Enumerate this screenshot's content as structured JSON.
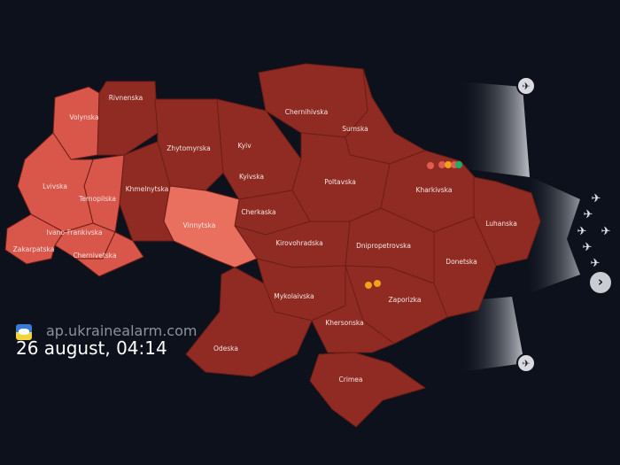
{
  "colors": {
    "background": "#0c111b",
    "alert_region": "#8f2b22",
    "light_region": "#d9564a",
    "lighter_region": "#e9705f",
    "border": "#6e1d16"
  },
  "regions": [
    {
      "id": "volynska",
      "name": "Volynska",
      "status": "light"
    },
    {
      "id": "rivnenska",
      "name": "Rivnenska",
      "status": "alert"
    },
    {
      "id": "zhytomyrska",
      "name": "Zhytomyrska",
      "status": "alert"
    },
    {
      "id": "kyiv",
      "name": "Kyiv",
      "status": "lighter"
    },
    {
      "id": "kyivska",
      "name": "Kyivska",
      "status": "alert"
    },
    {
      "id": "chernihivska",
      "name": "Chernihivska",
      "status": "alert"
    },
    {
      "id": "sumska",
      "name": "Sumska",
      "status": "alert"
    },
    {
      "id": "poltavska",
      "name": "Poltavska",
      "status": "alert"
    },
    {
      "id": "kharkivska",
      "name": "Kharkivska",
      "status": "alert"
    },
    {
      "id": "luhanska",
      "name": "Luhanska",
      "status": "alert"
    },
    {
      "id": "donetska",
      "name": "Donetska",
      "status": "alert"
    },
    {
      "id": "dnipropetrovska",
      "name": "Dnipropetrovska",
      "status": "alert"
    },
    {
      "id": "zaporizka",
      "name": "Zaporizka",
      "status": "alert"
    },
    {
      "id": "cherkaska",
      "name": "Cherkaska",
      "status": "alert"
    },
    {
      "id": "kirovohradska",
      "name": "Kirovohradska",
      "status": "alert"
    },
    {
      "id": "mykolaivska",
      "name": "Mykolaivska",
      "status": "alert"
    },
    {
      "id": "khersonska",
      "name": "Khersonska",
      "status": "alert"
    },
    {
      "id": "odeska",
      "name": "Odeska",
      "status": "alert"
    },
    {
      "id": "crimea",
      "name": "Crimea",
      "status": "alert"
    },
    {
      "id": "vinnytska",
      "name": "Vinnytska",
      "status": "lighter"
    },
    {
      "id": "khmelnytska",
      "name": "Khmelnytska",
      "status": "alert"
    },
    {
      "id": "ternopilska",
      "name": "Ternopilska",
      "status": "light"
    },
    {
      "id": "lvivska",
      "name": "Lvivska",
      "status": "light"
    },
    {
      "id": "ivano_frankivska",
      "name": "Ivano-Frankivska",
      "status": "light"
    },
    {
      "id": "zakarpatska",
      "name": "Zakarpatska",
      "status": "light"
    },
    {
      "id": "chernivetska",
      "name": "Chernivetska",
      "status": "light"
    }
  ],
  "icons": [
    "aircraft-icon",
    "missile-icon",
    "explosion-icon",
    "chevron-right-icon"
  ],
  "watermark": {
    "site": "map.ukrainealarm.com",
    "site_visible": "ap.ukrainealarm.com",
    "date": "26 august, 04:14"
  }
}
